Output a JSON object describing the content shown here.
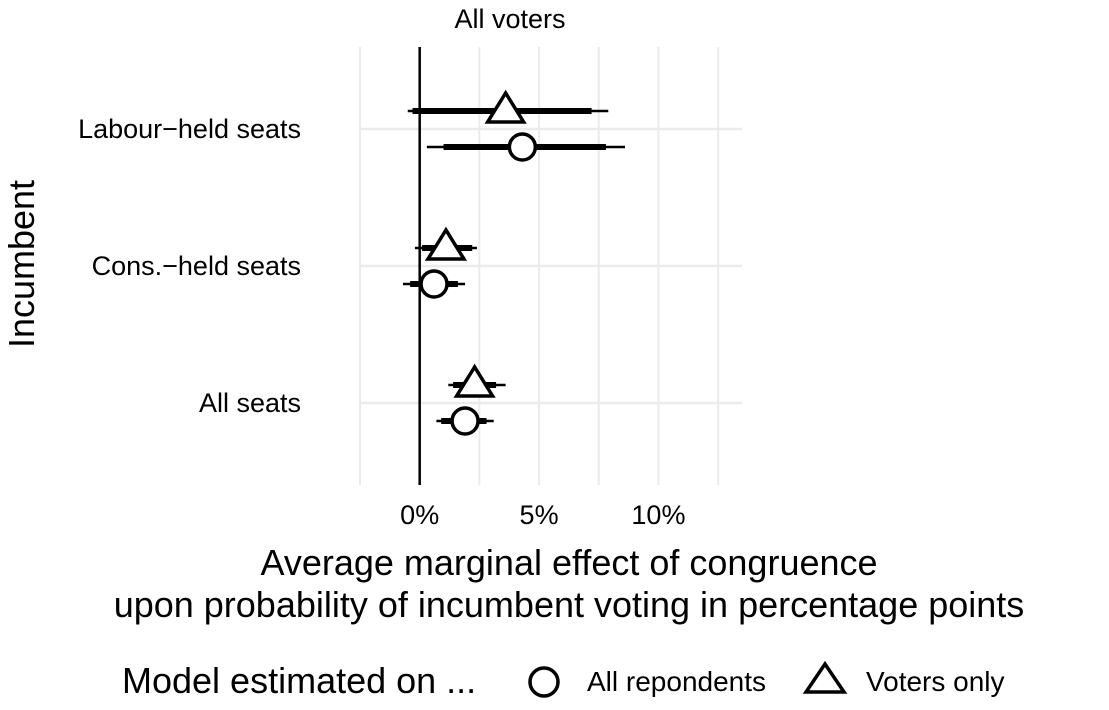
{
  "chart_data": {
    "type": "scatter",
    "title": "All voters",
    "xlabel_lines": [
      "Average marginal effect of congruence",
      "upon probability of incumbent voting in percentage points"
    ],
    "ylabel": "Incumbent",
    "xlim": [
      -2.5,
      13.5
    ],
    "x_ticks": [
      0,
      5,
      10
    ],
    "x_tick_labels": [
      "0%",
      "5%",
      "10%"
    ],
    "categories": [
      "Labour−held seats",
      "Cons.−held seats",
      "All seats"
    ],
    "grid": true,
    "legend": {
      "title": "Model estimated on ...",
      "position": "bottom",
      "entries": [
        {
          "label": "All repondents",
          "shape": "circle"
        },
        {
          "label": "Voters only",
          "shape": "triangle"
        }
      ]
    },
    "series": [
      {
        "name": "Voters only",
        "shape": "triangle",
        "points": [
          {
            "category": "Labour−held seats",
            "estimate": 3.6,
            "ci90": [
              -0.3,
              7.2
            ],
            "ci95": [
              -0.5,
              7.9
            ]
          },
          {
            "category": "Cons.−held seats",
            "estimate": 1.1,
            "ci90": [
              0.1,
              2.2
            ],
            "ci95": [
              -0.2,
              2.4
            ]
          },
          {
            "category": "All seats",
            "estimate": 2.3,
            "ci90": [
              1.4,
              3.2
            ],
            "ci95": [
              1.2,
              3.6
            ]
          }
        ]
      },
      {
        "name": "All repondents",
        "shape": "circle",
        "points": [
          {
            "category": "Labour−held seats",
            "estimate": 4.3,
            "ci90": [
              1.0,
              7.8
            ],
            "ci95": [
              0.3,
              8.6
            ]
          },
          {
            "category": "Cons.−held seats",
            "estimate": 0.6,
            "ci90": [
              -0.4,
              1.6
            ],
            "ci95": [
              -0.7,
              1.9
            ]
          },
          {
            "category": "All seats",
            "estimate": 1.9,
            "ci90": [
              0.9,
              2.8
            ],
            "ci95": [
              0.7,
              3.1
            ]
          }
        ]
      }
    ]
  }
}
